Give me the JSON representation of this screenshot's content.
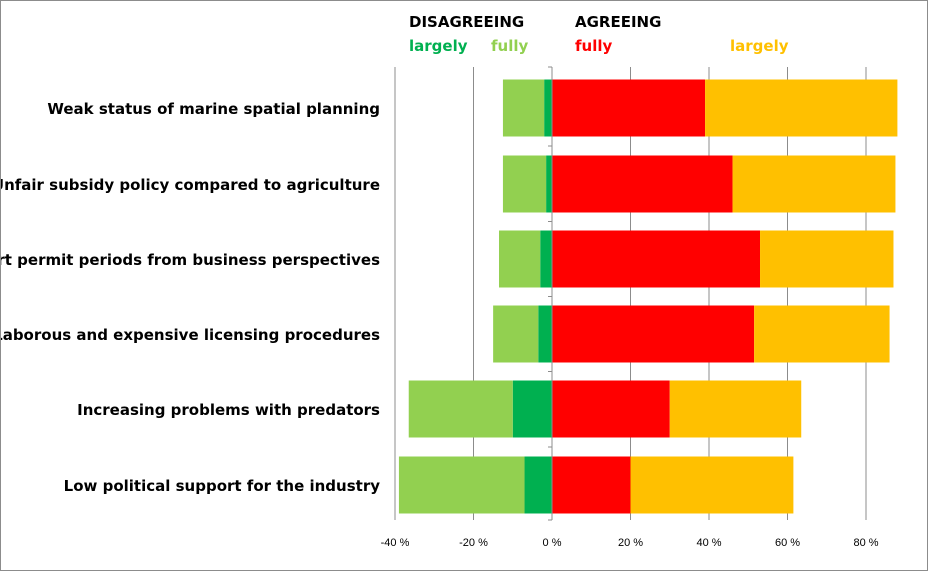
{
  "chart_data": {
    "type": "bar",
    "orientation": "horizontal",
    "stacked": "diverging",
    "categories": [
      "Weak status of marine spatial planning",
      "Unfair subsidy policy compared to agriculture",
      "Short permit periods from business perspectives",
      "Laborous and expensive licensing procedures",
      "Increasing problems with  predators",
      "Low political support for the industry"
    ],
    "series": [
      {
        "name": "largely",
        "group": "DISAGREEING",
        "color": "#00b050",
        "values": [
          -2,
          -1.5,
          -3,
          -3.5,
          -10,
          -7
        ]
      },
      {
        "name": "fully",
        "group": "DISAGREEING",
        "color": "#92d050",
        "values": [
          -10.5,
          -11,
          -10.5,
          -11.5,
          -26.5,
          -32
        ]
      },
      {
        "name": "fully",
        "group": "AGREEING",
        "color": "#ff0000",
        "values": [
          39,
          46,
          53,
          51.5,
          30,
          20
        ]
      },
      {
        "name": "largely",
        "group": "AGREEING",
        "color": "#ffc000",
        "values": [
          49,
          41.5,
          34,
          34.5,
          33.5,
          41.5
        ]
      }
    ],
    "xlim": [
      -40,
      90
    ],
    "x_ticks": [
      -40,
      -20,
      0,
      20,
      40,
      60,
      80
    ],
    "x_tick_labels": [
      "-40 %",
      "-20 %",
      "0 %",
      "20 %",
      "40 %",
      "60 %",
      "80 %"
    ],
    "grid": "vertical",
    "legend": {
      "position": "top",
      "groups": [
        {
          "label": "DISAGREEING",
          "items": [
            {
              "label": "largely",
              "color": "#00b050"
            },
            {
              "label": "fully",
              "color": "#92d050"
            }
          ]
        },
        {
          "label": "AGREEING",
          "items": [
            {
              "label": "fully",
              "color": "#ff0000"
            },
            {
              "label": "largely",
              "color": "#ffc000"
            }
          ]
        }
      ]
    }
  }
}
